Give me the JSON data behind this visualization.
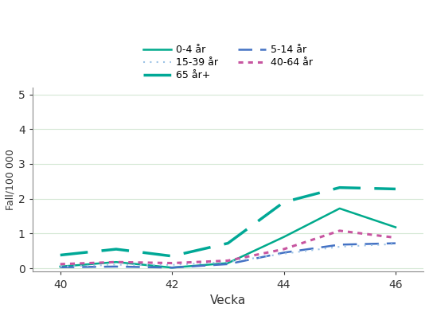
{
  "weeks": [
    40,
    41,
    42,
    43,
    44,
    45,
    46
  ],
  "series_order": [
    "0-4 år",
    "5-14 år",
    "15-39 år",
    "40-64 år",
    "65 år+"
  ],
  "series": {
    "0-4 år": {
      "values": [
        0.05,
        0.18,
        0.02,
        0.15,
        0.9,
        1.72,
        1.18
      ],
      "color": "#00AA8C",
      "linestyle": "solid",
      "linewidth": 1.8
    },
    "5-14 år": {
      "values": [
        0.03,
        0.05,
        0.02,
        0.12,
        0.45,
        0.68,
        0.72
      ],
      "color": "#4472C4",
      "linestyle": "dashed",
      "linewidth": 1.8
    },
    "15-39 år": {
      "values": [
        0.05,
        0.1,
        0.1,
        0.18,
        0.42,
        0.62,
        0.7
      ],
      "color": "#A0C4E8",
      "linestyle": "dotted",
      "linewidth": 1.6
    },
    "40-64 år": {
      "values": [
        0.12,
        0.18,
        0.15,
        0.22,
        0.55,
        1.08,
        0.88
      ],
      "color": "#CC00AA",
      "linestyle": "dotted",
      "linewidth": 2.2
    },
    "65 år+": {
      "values": [
        0.38,
        0.55,
        0.35,
        0.72,
        1.9,
        2.32,
        2.28
      ],
      "color": "#00AA99",
      "linestyle": "dashed",
      "linewidth": 2.5
    }
  },
  "xlabel": "Vecka",
  "ylabel": "Fall/100 000",
  "xlim": [
    39.5,
    46.5
  ],
  "ylim": [
    -0.1,
    5.2
  ],
  "yticks": [
    0,
    1,
    2,
    3,
    4,
    5
  ],
  "xticks": [
    40,
    42,
    44,
    46
  ],
  "grid_color": "#CCDDCC",
  "background_color": "#FFFFFF",
  "legend_layout": [
    [
      "0-4 år",
      "5-14 år"
    ],
    [
      "15-39 år",
      "40-64 år"
    ],
    [
      "65 år+"
    ]
  ]
}
